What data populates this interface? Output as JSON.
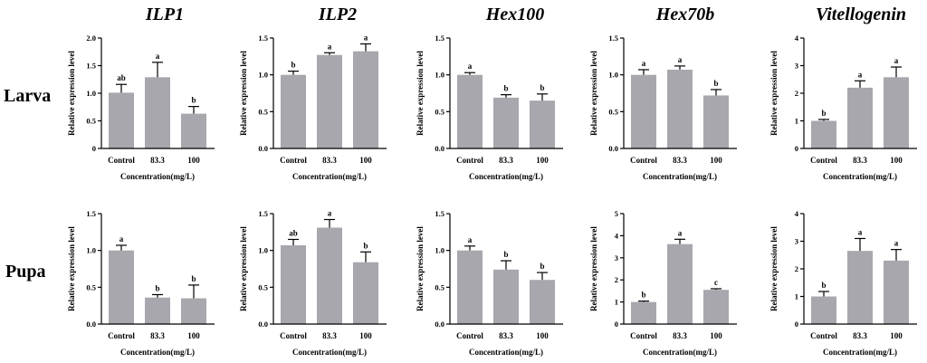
{
  "genes": [
    "ILP1",
    "ILP2",
    "Hex100",
    "Hex70b",
    "Vitellogenin"
  ],
  "rows": [
    "Larva",
    "Pupa"
  ],
  "colors": {
    "bar": "#a8a7ad",
    "axis": "#000000"
  },
  "chart_data": [
    {
      "type": "bar",
      "gene": "ILP1",
      "stage": "Larva",
      "categories": [
        "Control",
        "83.3",
        "100"
      ],
      "values": [
        1.01,
        1.29,
        0.63
      ],
      "errors": [
        0.15,
        0.27,
        0.13
      ],
      "significance": [
        "ab",
        "a",
        "b"
      ],
      "ylim": [
        0,
        2.0
      ],
      "yticks": [
        0,
        0.5,
        1.0,
        1.5,
        2.0
      ],
      "tick_labels": [
        "0",
        "0.5",
        "1.0",
        "1.5",
        "2.0"
      ],
      "ylabel": "Relative expression level",
      "xlabel": "Concentration(mg/L)"
    },
    {
      "type": "bar",
      "gene": "ILP2",
      "stage": "Larva",
      "categories": [
        "Control",
        "83.3",
        "100"
      ],
      "values": [
        1.0,
        1.27,
        1.32
      ],
      "errors": [
        0.05,
        0.03,
        0.1
      ],
      "significance": [
        "b",
        "a",
        "a"
      ],
      "ylim": [
        0,
        1.5
      ],
      "yticks": [
        0,
        0.5,
        1.0,
        1.5
      ],
      "tick_labels": [
        "0.0",
        "0.5",
        "1.0",
        "1.5"
      ],
      "ylabel": "Relative expression level",
      "xlabel": "Concentration(mg/L)"
    },
    {
      "type": "bar",
      "gene": "Hex100",
      "stage": "Larva",
      "categories": [
        "Control",
        "83.3",
        "100"
      ],
      "values": [
        1.0,
        0.69,
        0.65
      ],
      "errors": [
        0.03,
        0.04,
        0.09
      ],
      "significance": [
        "a",
        "b",
        "b"
      ],
      "ylim": [
        0,
        1.5
      ],
      "yticks": [
        0,
        0.5,
        1.0,
        1.5
      ],
      "tick_labels": [
        "0.0",
        "0.5",
        "1.0",
        "1.5"
      ],
      "ylabel": "Relative expression level",
      "xlabel": "Concentration(mg/L)"
    },
    {
      "type": "bar",
      "gene": "Hex70b",
      "stage": "Larva",
      "categories": [
        "Control",
        "83.3",
        "100"
      ],
      "values": [
        1.0,
        1.07,
        0.72
      ],
      "errors": [
        0.07,
        0.05,
        0.08
      ],
      "significance": [
        "a",
        "a",
        "b"
      ],
      "ylim": [
        0,
        1.5
      ],
      "yticks": [
        0,
        0.5,
        1.0,
        1.5
      ],
      "tick_labels": [
        "0.0",
        "0.5",
        "1.0",
        "1.5"
      ],
      "ylabel": "Relative expression level",
      "xlabel": "Concentration(mg/L)"
    },
    {
      "type": "bar",
      "gene": "Vitellogenin",
      "stage": "Larva",
      "categories": [
        "Control",
        "83.3",
        "100"
      ],
      "values": [
        1.0,
        2.2,
        2.58
      ],
      "errors": [
        0.05,
        0.25,
        0.37
      ],
      "significance": [
        "b",
        "a",
        "a"
      ],
      "ylim": [
        0,
        4
      ],
      "yticks": [
        0,
        1,
        2,
        3,
        4
      ],
      "tick_labels": [
        "0",
        "1",
        "2",
        "3",
        "4"
      ],
      "ylabel": "Relative expression level",
      "xlabel": "Concentration(mg/L)"
    },
    {
      "type": "bar",
      "gene": "ILP1",
      "stage": "Pupa",
      "categories": [
        "Control",
        "83.3",
        "100"
      ],
      "values": [
        1.0,
        0.36,
        0.35
      ],
      "errors": [
        0.07,
        0.04,
        0.18
      ],
      "significance": [
        "a",
        "b",
        "b"
      ],
      "ylim": [
        0,
        1.5
      ],
      "yticks": [
        0,
        0.5,
        1.0,
        1.5
      ],
      "tick_labels": [
        "0.0",
        "0.5",
        "1.0",
        "1.5"
      ],
      "ylabel": "Relative expression level",
      "xlabel": "Concentration(mg/L)"
    },
    {
      "type": "bar",
      "gene": "ILP2",
      "stage": "Pupa",
      "categories": [
        "Control",
        "83.3",
        "100"
      ],
      "values": [
        1.07,
        1.31,
        0.84
      ],
      "errors": [
        0.08,
        0.11,
        0.14
      ],
      "significance": [
        "ab",
        "a",
        "b"
      ],
      "ylim": [
        0,
        1.5
      ],
      "yticks": [
        0,
        0.5,
        1.0,
        1.5
      ],
      "tick_labels": [
        "0.0",
        "0.5",
        "1.0",
        "1.5"
      ],
      "ylabel": "Relative expression level",
      "xlabel": "Concentration(mg/L)"
    },
    {
      "type": "bar",
      "gene": "Hex100",
      "stage": "Pupa",
      "categories": [
        "Control",
        "83.3",
        "100"
      ],
      "values": [
        1.0,
        0.74,
        0.6
      ],
      "errors": [
        0.06,
        0.12,
        0.1
      ],
      "significance": [
        "a",
        "b",
        "b"
      ],
      "ylim": [
        0,
        1.5
      ],
      "yticks": [
        0,
        0.5,
        1.0,
        1.5
      ],
      "tick_labels": [
        "0.0",
        "0.5",
        "1.0",
        "1.5"
      ],
      "ylabel": "Relative expression level",
      "xlabel": "Concentration(mg/L)"
    },
    {
      "type": "bar",
      "gene": "Hex70b",
      "stage": "Pupa",
      "categories": [
        "Control",
        "83.3",
        "100"
      ],
      "values": [
        1.0,
        3.62,
        1.55
      ],
      "errors": [
        0.04,
        0.22,
        0.05
      ],
      "significance": [
        "b",
        "a",
        "c"
      ],
      "ylim": [
        0,
        5
      ],
      "yticks": [
        0,
        1,
        2,
        3,
        4,
        5
      ],
      "tick_labels": [
        "0",
        "1",
        "2",
        "3",
        "4",
        "5"
      ],
      "ylabel": "Relative expression level",
      "xlabel": "Concentration(mg/L)"
    },
    {
      "type": "bar",
      "gene": "Vitellogenin",
      "stage": "Pupa",
      "categories": [
        "Control",
        "83.3",
        "100"
      ],
      "values": [
        1.0,
        2.65,
        2.3
      ],
      "errors": [
        0.18,
        0.45,
        0.4
      ],
      "significance": [
        "b",
        "a",
        "a"
      ],
      "ylim": [
        0,
        4
      ],
      "yticks": [
        0,
        1,
        2,
        3,
        4
      ],
      "tick_labels": [
        "0",
        "1",
        "2",
        "3",
        "4"
      ],
      "ylabel": "Relative expression level",
      "xlabel": "Concentration(mg/L)"
    }
  ]
}
